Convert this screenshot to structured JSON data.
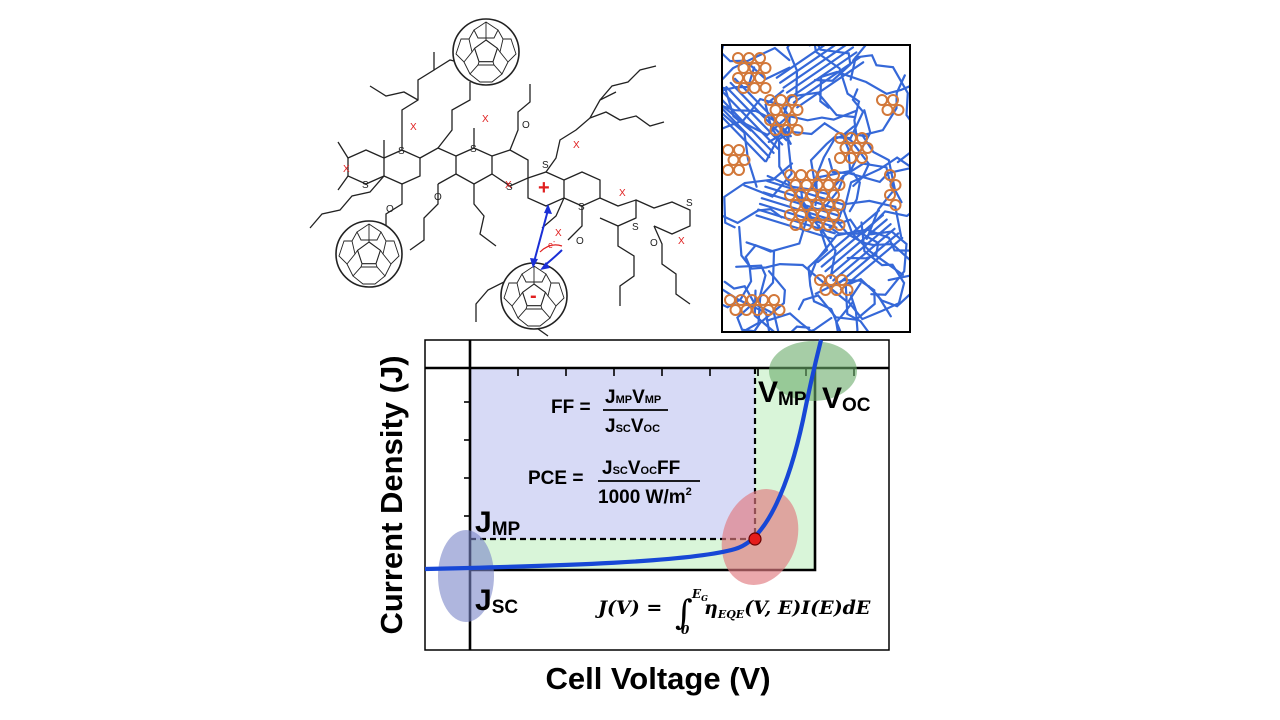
{
  "chart_data": {
    "type": "line",
    "xlabel": "Cell Voltage (V)",
    "ylabel": "Current Density (J)",
    "curve": "J-V curve",
    "labels": {
      "jsc": "J",
      "jsc_sub": "SC",
      "jmp": "J",
      "jmp_sub": "MP",
      "vmp": "V",
      "vmp_sub": "MP",
      "voc": "V",
      "voc_sub": "OC"
    },
    "highlight_colors": {
      "jsc_region": "#7a86c8",
      "max_power_point": "#e07a80",
      "voc_region": "#6aab6a",
      "power_rectangle": "#c9cdf3",
      "fill_region": "#ccf2cc",
      "curve": "#1747d6",
      "marker": "#e51c1c"
    }
  },
  "equations": {
    "ff_lhs": "FF =",
    "ff_num_a": "J",
    "ff_num_a_sub": "MP",
    "ff_num_b": "V",
    "ff_num_b_sub": "MP",
    "ff_den_a": "J",
    "ff_den_a_sub": "SC",
    "ff_den_b": "V",
    "ff_den_b_sub": "OC",
    "pce_lhs": "PCE =",
    "pce_num_a": "J",
    "pce_num_a_sub": "SC",
    "pce_num_b": "V",
    "pce_num_b_sub": "OC",
    "pce_num_c": "FF",
    "pce_den": "1000 W/m",
    "pce_den_sup": "2",
    "integral_lhs": "J(V) = ",
    "integral_upper": "E",
    "integral_upper_sub": "G",
    "integral_lower": "0",
    "integral_body": "η",
    "integral_body_sub": "EQE",
    "integral_rest": "(V, E)I(E)dE"
  },
  "molecule": {
    "charge_plus": "+",
    "charge_minus": "-",
    "electron": "e",
    "electron_sup": "-",
    "atom_s": "S",
    "atom_o": "O",
    "site_x": "X",
    "colors": {
      "bonds": "#222222",
      "site": "#e02020",
      "charge_arrow": "#1a2fd6"
    }
  },
  "morphology": {
    "colors": {
      "polymer": "#3568d8",
      "fullerene": "#d2783a",
      "frame": "#000000"
    }
  }
}
